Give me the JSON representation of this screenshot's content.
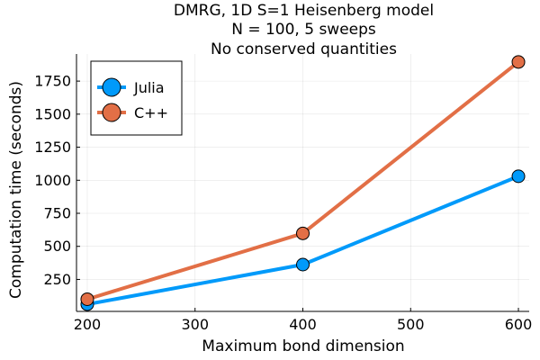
{
  "chart_data": {
    "type": "line",
    "title_lines": [
      "DMRG, 1D S=1 Heisenberg model",
      "N = 100, 5 sweeps",
      "No conserved quantities"
    ],
    "xlabel": "Maximum bond dimension",
    "ylabel": "Computation time (seconds)",
    "x": [
      200,
      400,
      600
    ],
    "xlim": [
      190,
      610
    ],
    "ylim": [
      8,
      1955
    ],
    "xticks": [
      200,
      300,
      400,
      500,
      600
    ],
    "yticks": [
      250,
      500,
      750,
      1000,
      1250,
      1500,
      1750
    ],
    "grid": true,
    "legend_position": "top-left",
    "series": [
      {
        "name": "Julia",
        "values": [
          62,
          362,
          1030
        ],
        "color": "#009AFA"
      },
      {
        "name": "C++",
        "values": [
          100,
          598,
          1895
        ],
        "color": "#E26F46"
      }
    ]
  }
}
